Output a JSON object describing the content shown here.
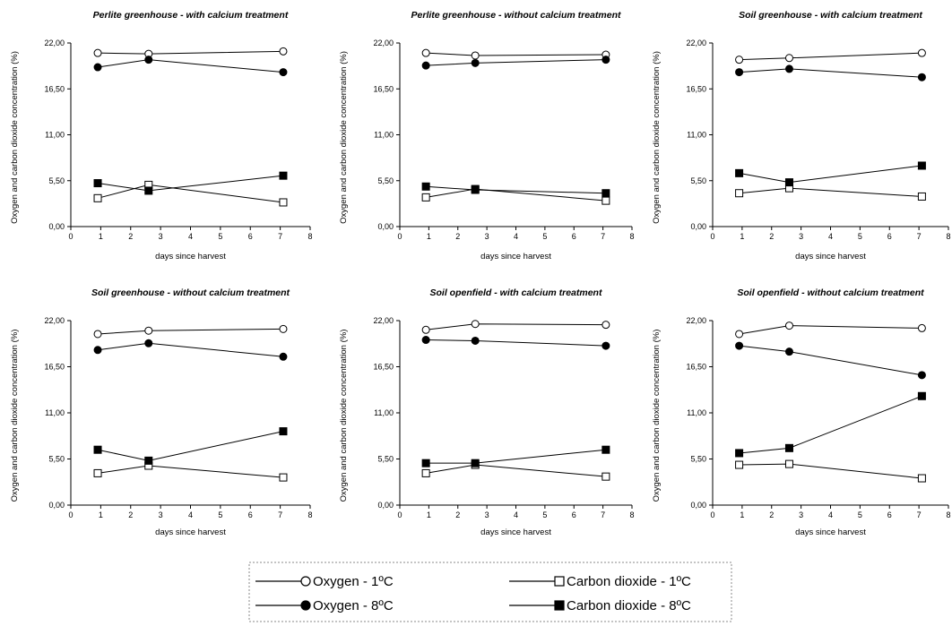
{
  "chart_data": [
    {
      "type": "line",
      "title": "Perlite greenhouse - with calcium treatment",
      "xlabel": "days since harvest",
      "ylabel": "Oxygen and carbon dioxide concentration (%)",
      "xlim": [
        0,
        8
      ],
      "ylim": [
        0,
        22
      ],
      "xticks": [
        "0",
        "1",
        "2",
        "3",
        "4",
        "5",
        "6",
        "7",
        "8"
      ],
      "yticks": [
        "0,00",
        "5,50",
        "11,00",
        "16,50",
        "22,00"
      ],
      "x": [
        0.9,
        2.6,
        7.1
      ],
      "series": [
        {
          "name": "Oxygen - 1ºC",
          "values": [
            20.8,
            20.7,
            21.0
          ]
        },
        {
          "name": "Carbon dioxide - 1ºC",
          "values": [
            3.4,
            5.0,
            2.9
          ]
        },
        {
          "name": "Oxygen - 8ºC",
          "values": [
            19.1,
            20.0,
            18.5
          ]
        },
        {
          "name": "Carbon dioxide - 8ºC",
          "values": [
            5.2,
            4.3,
            6.1
          ]
        }
      ]
    },
    {
      "type": "line",
      "title": "Perlite greenhouse - without calcium treatment",
      "xlabel": "days since harvest",
      "ylabel": "Oxygen and carbon dioxide concentration (%)",
      "xlim": [
        0,
        8
      ],
      "ylim": [
        0,
        22
      ],
      "xticks": [
        "0",
        "1",
        "2",
        "3",
        "4",
        "5",
        "6",
        "7",
        "8"
      ],
      "yticks": [
        "0,00",
        "5,50",
        "11,00",
        "16,50",
        "22,00"
      ],
      "x": [
        0.9,
        2.6,
        7.1
      ],
      "series": [
        {
          "name": "Oxygen - 1ºC",
          "values": [
            20.8,
            20.5,
            20.6
          ]
        },
        {
          "name": "Carbon dioxide - 1ºC",
          "values": [
            3.5,
            4.5,
            3.1
          ]
        },
        {
          "name": "Oxygen - 8ºC",
          "values": [
            19.3,
            19.6,
            20.0
          ]
        },
        {
          "name": "Carbon dioxide - 8ºC",
          "values": [
            4.8,
            4.4,
            4.0
          ]
        }
      ]
    },
    {
      "type": "line",
      "title": "Soil greenhouse - with calcium treatment",
      "xlabel": "days since harvest",
      "ylabel": "Oxygen and carbon dioxide concentration (%)",
      "xlim": [
        0,
        8
      ],
      "ylim": [
        0,
        22
      ],
      "xticks": [
        "0",
        "1",
        "2",
        "3",
        "4",
        "5",
        "6",
        "7",
        "8"
      ],
      "yticks": [
        "0,00",
        "5,50",
        "11,00",
        "16,50",
        "22,00"
      ],
      "x": [
        0.9,
        2.6,
        7.1
      ],
      "series": [
        {
          "name": "Oxygen - 1ºC",
          "values": [
            20.0,
            20.2,
            20.8
          ]
        },
        {
          "name": "Carbon dioxide - 1ºC",
          "values": [
            4.0,
            4.6,
            3.6
          ]
        },
        {
          "name": "Oxygen - 8ºC",
          "values": [
            18.5,
            18.9,
            17.9
          ]
        },
        {
          "name": "Carbon dioxide - 8ºC",
          "values": [
            6.4,
            5.3,
            7.3
          ]
        }
      ]
    },
    {
      "type": "line",
      "title": "Soil greenhouse - without calcium treatment",
      "xlabel": "days since harvest",
      "ylabel": "Oxygen and carbon dioxide concentration (%)",
      "xlim": [
        0,
        8
      ],
      "ylim": [
        0,
        22
      ],
      "xticks": [
        "0",
        "1",
        "2",
        "3",
        "4",
        "5",
        "6",
        "7",
        "8"
      ],
      "yticks": [
        "0,00",
        "5,50",
        "11,00",
        "16,50",
        "22,00"
      ],
      "x": [
        0.9,
        2.6,
        7.1
      ],
      "series": [
        {
          "name": "Oxygen - 1ºC",
          "values": [
            20.4,
            20.8,
            21.0
          ]
        },
        {
          "name": "Carbon dioxide - 1ºC",
          "values": [
            3.8,
            4.7,
            3.3
          ]
        },
        {
          "name": "Oxygen - 8ºC",
          "values": [
            18.5,
            19.3,
            17.7
          ]
        },
        {
          "name": "Carbon dioxide - 8ºC",
          "values": [
            6.6,
            5.3,
            8.8
          ]
        }
      ]
    },
    {
      "type": "line",
      "title": "Soil openfield - with calcium treatment",
      "xlabel": "days since harvest",
      "ylabel": "Oxygen and carbon dioxide concentration (%)",
      "xlim": [
        0,
        8
      ],
      "ylim": [
        0,
        22
      ],
      "xticks": [
        "0",
        "1",
        "2",
        "3",
        "4",
        "5",
        "6",
        "7",
        "8"
      ],
      "yticks": [
        "0,00",
        "5,50",
        "11,00",
        "16,50",
        "22,00"
      ],
      "x": [
        0.9,
        2.6,
        7.1
      ],
      "series": [
        {
          "name": "Oxygen - 1ºC",
          "values": [
            20.9,
            21.6,
            21.5
          ]
        },
        {
          "name": "Carbon dioxide - 1ºC",
          "values": [
            3.8,
            4.8,
            3.4
          ]
        },
        {
          "name": "Oxygen - 8ºC",
          "values": [
            19.7,
            19.6,
            19.0
          ]
        },
        {
          "name": "Carbon dioxide - 8ºC",
          "values": [
            5.0,
            5.0,
            6.6
          ]
        }
      ]
    },
    {
      "type": "line",
      "title": "Soil openfield - without calcium treatment",
      "xlabel": "days since harvest",
      "ylabel": "Oxygen and carbon dioxide concentration (%)",
      "xlim": [
        0,
        8
      ],
      "ylim": [
        0,
        22
      ],
      "xticks": [
        "0",
        "1",
        "2",
        "3",
        "4",
        "5",
        "6",
        "7",
        "8"
      ],
      "yticks": [
        "0,00",
        "5,50",
        "11,00",
        "16,50",
        "22,00"
      ],
      "x": [
        0.9,
        2.6,
        7.1
      ],
      "series": [
        {
          "name": "Oxygen - 1ºC",
          "values": [
            20.4,
            21.4,
            21.1
          ]
        },
        {
          "name": "Carbon dioxide - 1ºC",
          "values": [
            4.8,
            4.9,
            3.2
          ]
        },
        {
          "name": "Oxygen - 8ºC",
          "values": [
            19.0,
            18.3,
            15.5
          ]
        },
        {
          "name": "Carbon dioxide - 8ºC",
          "values": [
            6.2,
            6.8,
            13.0
          ]
        }
      ]
    }
  ],
  "legend": {
    "placement": "bottom-center",
    "items": [
      {
        "label": "Oxygen - 1ºC",
        "marker": "open-circle"
      },
      {
        "label": "Carbon dioxide - 1ºC",
        "marker": "open-square"
      },
      {
        "label": "Oxygen - 8ºC",
        "marker": "filled-circle"
      },
      {
        "label": "Carbon dioxide - 8ºC",
        "marker": "filled-square"
      }
    ]
  },
  "colors": {
    "line": "#000000",
    "background": "#ffffff"
  }
}
